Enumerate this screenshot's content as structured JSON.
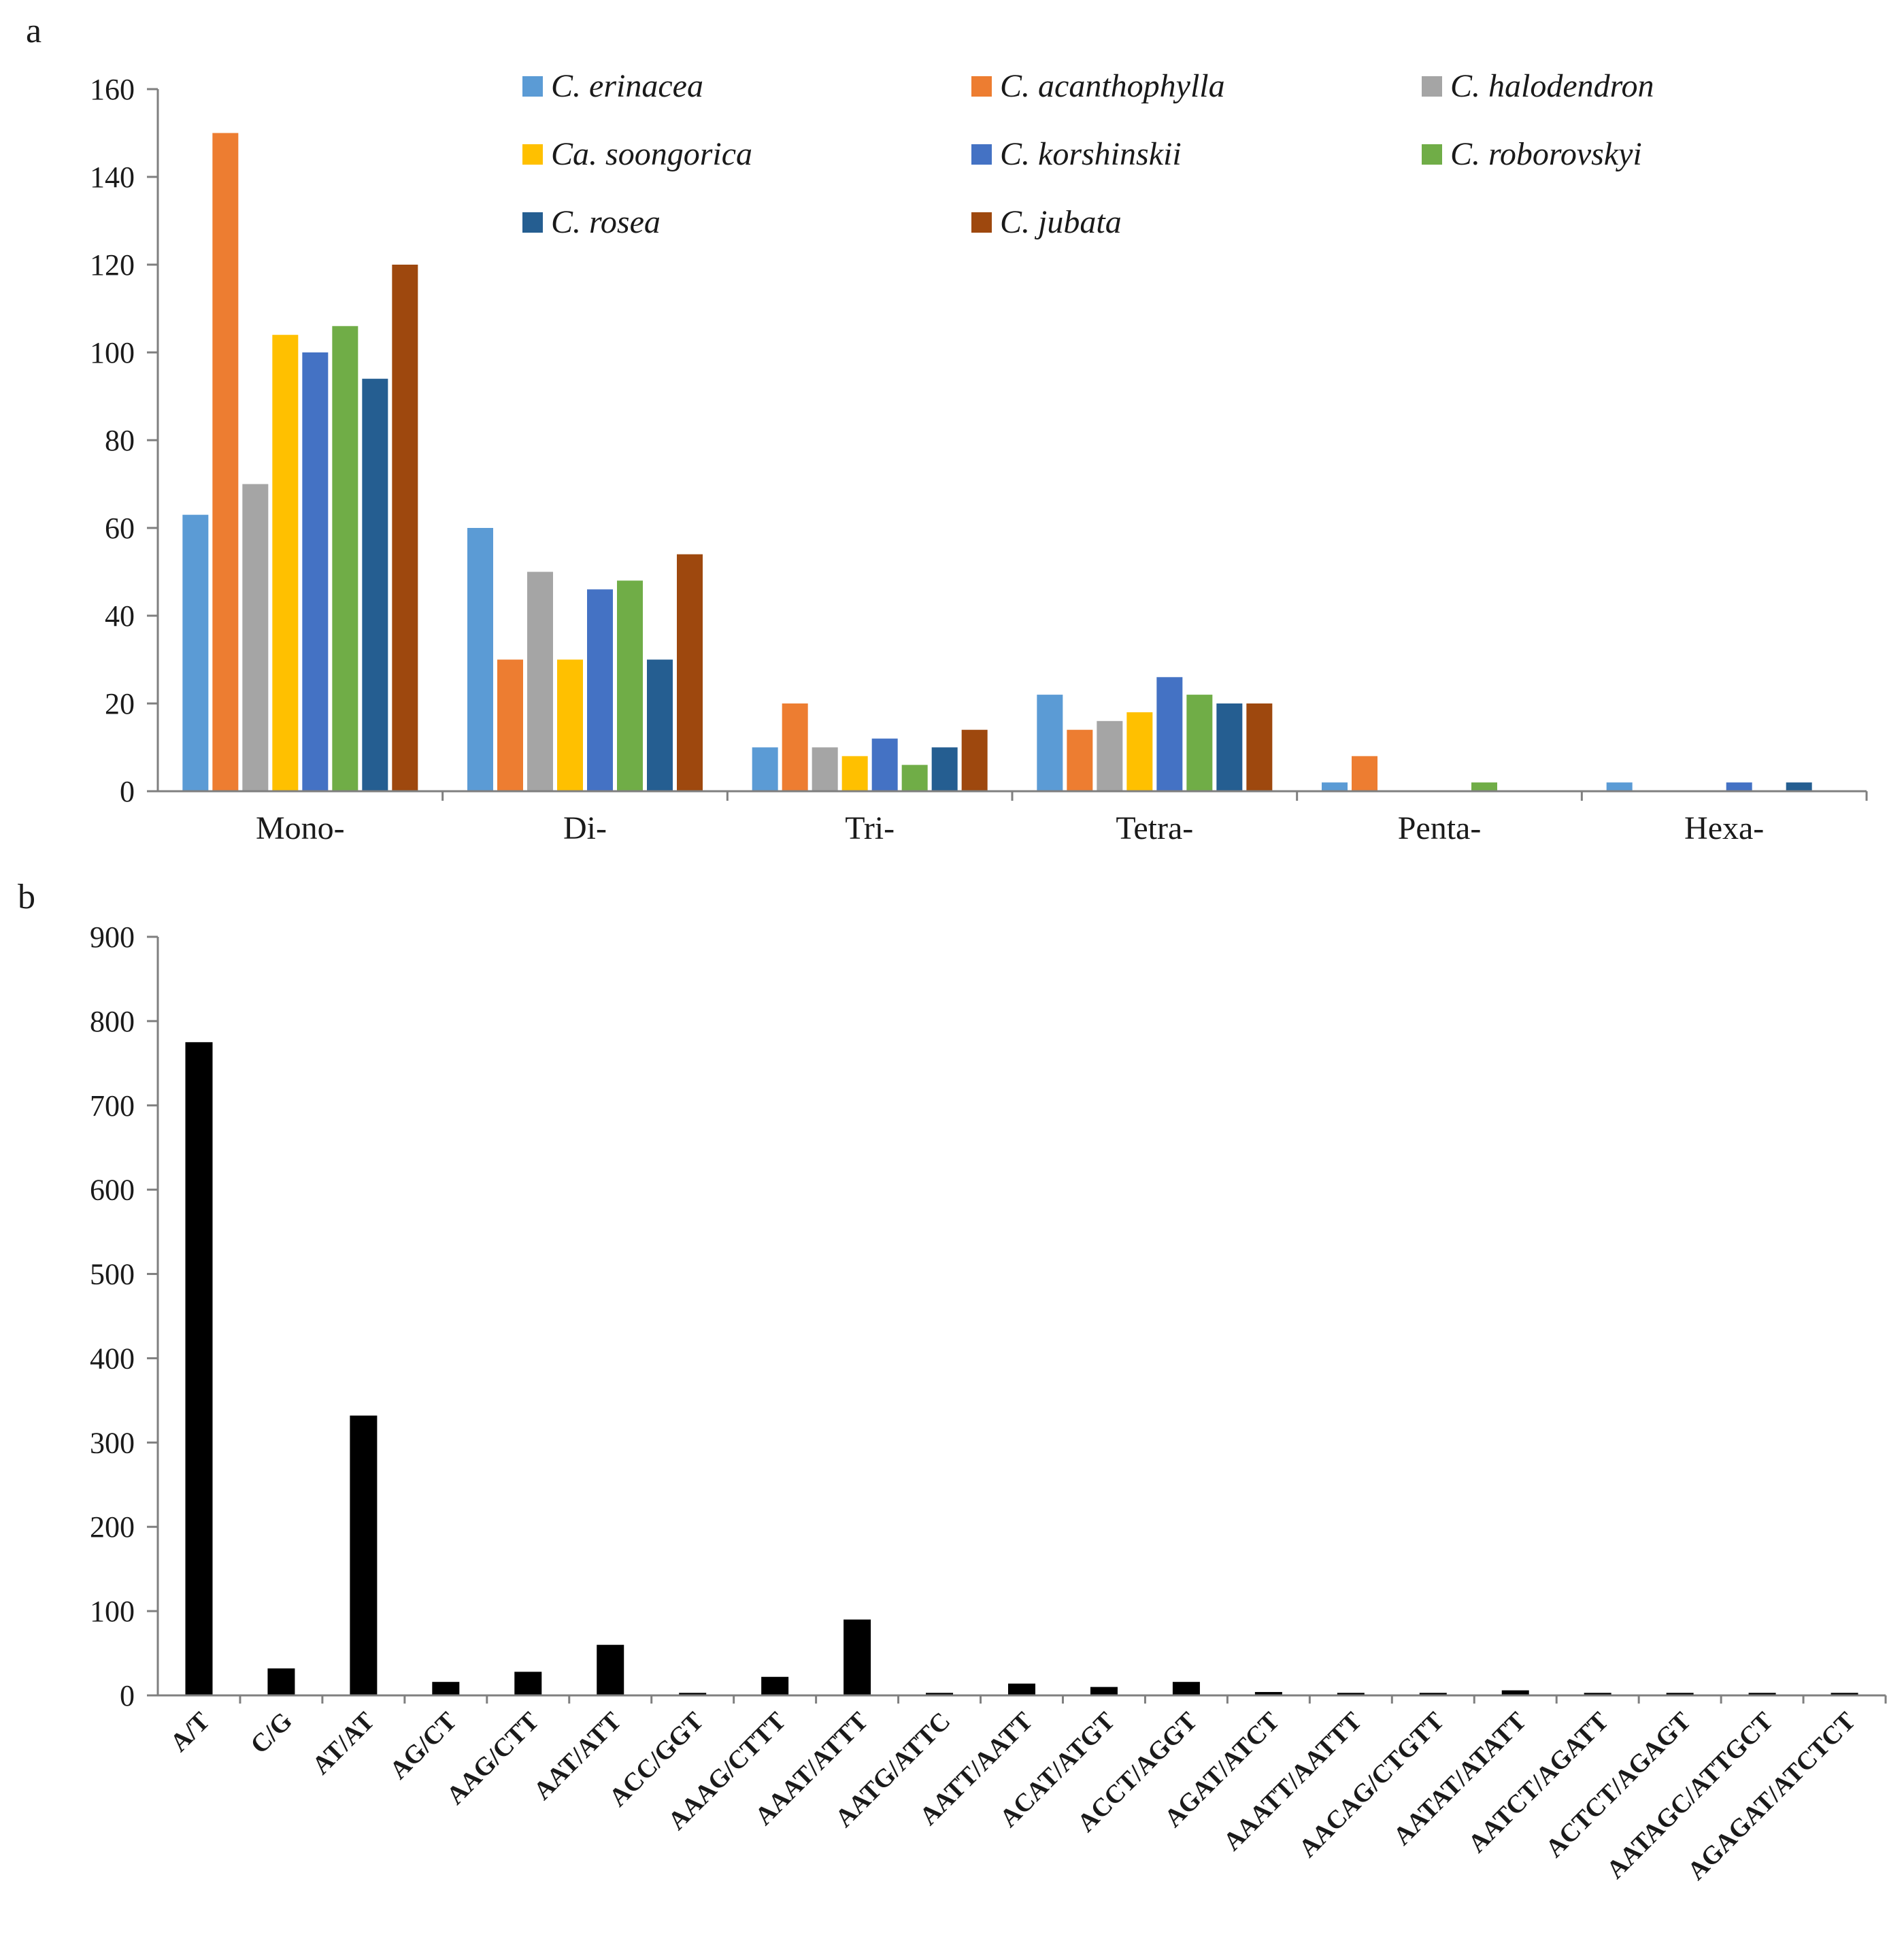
{
  "figure": {
    "panel_a_label": "a",
    "panel_b_label": "b"
  },
  "chart_data": [
    {
      "type": "bar",
      "panel": "a",
      "title": "",
      "xlabel": "",
      "ylabel": "",
      "ylim": [
        0,
        160
      ],
      "yticks": [
        0,
        20,
        40,
        60,
        80,
        100,
        120,
        140,
        160
      ],
      "grid": false,
      "legend_position": "top",
      "categories": [
        "Mono-",
        "Di-",
        "Tri-",
        "Tetra-",
        "Penta-",
        "Hexa-"
      ],
      "series": [
        {
          "name": "C. erinacea",
          "color": "#5b9bd5",
          "values": [
            63,
            60,
            10,
            22,
            2,
            2
          ]
        },
        {
          "name": "C. acanthophylla",
          "color": "#ed7d31",
          "values": [
            150,
            30,
            20,
            14,
            8,
            0
          ]
        },
        {
          "name": "C. halodendron",
          "color": "#a5a5a5",
          "values": [
            70,
            50,
            10,
            16,
            0,
            0
          ]
        },
        {
          "name": "Ca. soongorica",
          "color": "#ffc000",
          "values": [
            104,
            30,
            8,
            18,
            0,
            0
          ]
        },
        {
          "name": "C. korshinskii",
          "color": "#4472c4",
          "values": [
            100,
            46,
            12,
            26,
            0,
            2
          ]
        },
        {
          "name": "C. roborovskyi",
          "color": "#70ad47",
          "values": [
            106,
            48,
            6,
            22,
            2,
            0
          ]
        },
        {
          "name": "C. rosea",
          "color": "#255e91",
          "values": [
            94,
            30,
            10,
            20,
            0,
            2
          ]
        },
        {
          "name": "C. jubata",
          "color": "#9e480e",
          "values": [
            120,
            54,
            14,
            20,
            0,
            0
          ]
        }
      ]
    },
    {
      "type": "bar",
      "panel": "b",
      "title": "",
      "xlabel": "",
      "ylabel": "",
      "ylim": [
        0,
        900
      ],
      "yticks": [
        0,
        100,
        200,
        300,
        400,
        500,
        600,
        700,
        800,
        900
      ],
      "grid": false,
      "bar_color": "#000000",
      "categories": [
        "A/T",
        "C/G",
        "AT/AT",
        "AG/CT",
        "AAG/CTT",
        "AAT/ATT",
        "ACC/GGT",
        "AAAG/CTTT",
        "AAAT/ATTT",
        "AATG/ATTC",
        "AATT/AATT",
        "ACAT/ATGT",
        "ACCT/AGGT",
        "AGAT/ATCT",
        "AAATT/AATTT",
        "AACAG/CTGTT",
        "AATAT/ATATT",
        "AATCT/AGATT",
        "ACTCT/AGAGT",
        "AATAGC/ATTGCT",
        "AGAGAT/ATCTCT"
      ],
      "values": [
        775,
        32,
        332,
        16,
        28,
        60,
        3,
        22,
        90,
        3,
        14,
        10,
        16,
        4,
        3,
        3,
        6,
        3,
        3,
        3,
        3
      ]
    }
  ]
}
